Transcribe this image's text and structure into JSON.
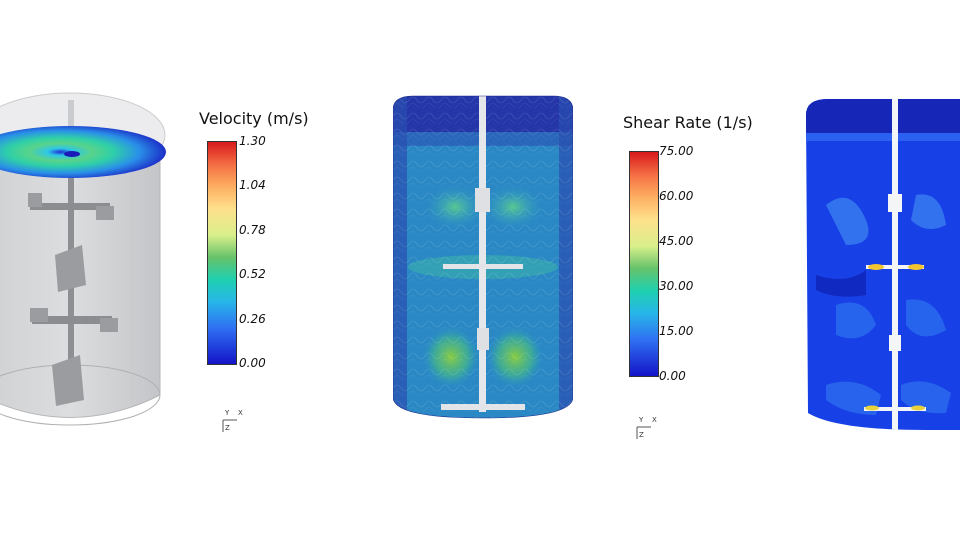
{
  "legend_velocity": {
    "title": "Velocity (m/s)",
    "ticks": [
      "1.30",
      "1.04",
      "0.78",
      "0.52",
      "0.26",
      "0.00"
    ]
  },
  "legend_shear": {
    "title": "Shear Rate (1/s)",
    "ticks": [
      "75.00",
      "60.00",
      "45.00",
      "30.00",
      "15.00",
      "0.00"
    ]
  },
  "axes": {
    "x": "X",
    "y": "Y",
    "z": "Z"
  }
}
